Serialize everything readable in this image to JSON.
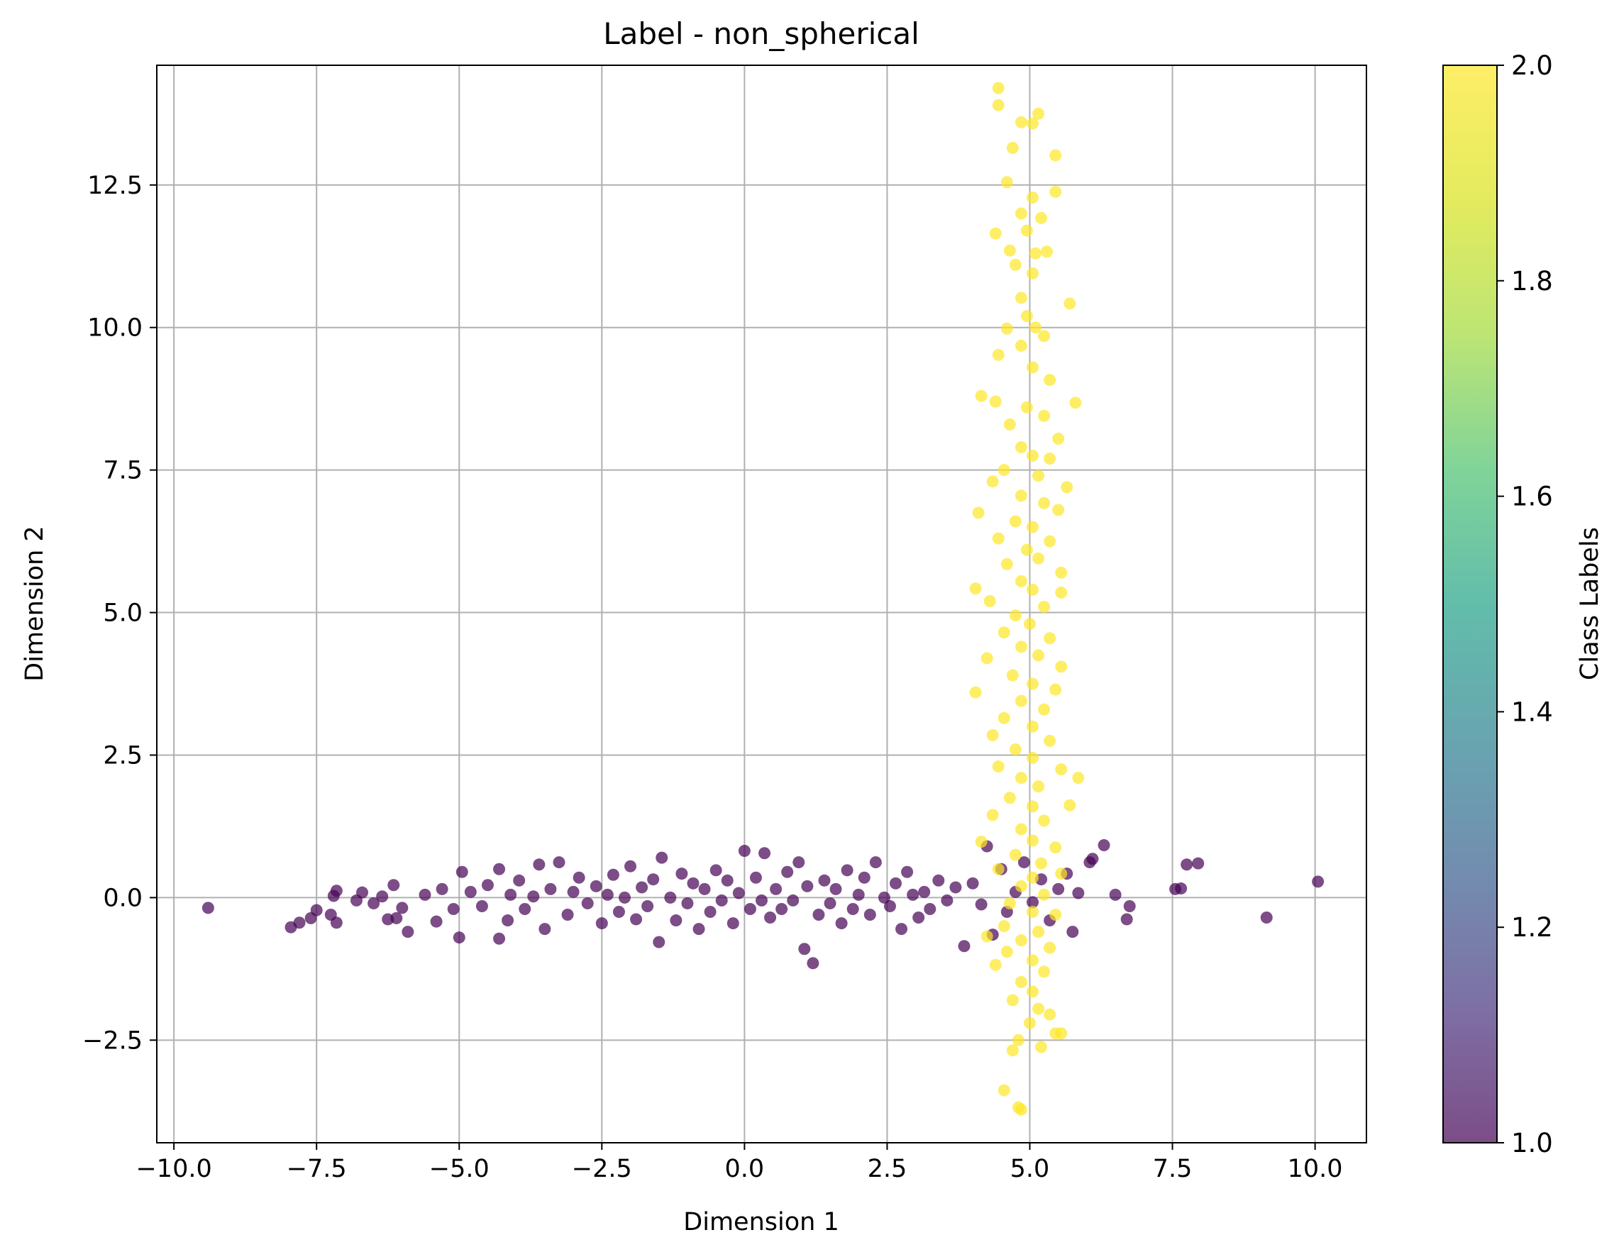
{
  "chart_data": {
    "type": "scatter",
    "title": "Label - non_spherical",
    "xlabel": "Dimension 1",
    "ylabel": "Dimension 2",
    "xlim": [
      -10.3,
      10.9
    ],
    "ylim": [
      -4.3,
      14.6
    ],
    "xticks": [
      -10.0,
      -7.5,
      -5.0,
      -2.5,
      0.0,
      2.5,
      5.0,
      7.5,
      10.0
    ],
    "xtick_labels": [
      "−10.0",
      "−7.5",
      "−5.0",
      "−2.5",
      "0.0",
      "2.5",
      "5.0",
      "7.5",
      "10.0"
    ],
    "yticks": [
      -2.5,
      0.0,
      2.5,
      5.0,
      7.5,
      10.0,
      12.5
    ],
    "ytick_labels": [
      "−2.5",
      "0.0",
      "2.5",
      "5.0",
      "7.5",
      "10.0",
      "12.5"
    ],
    "grid": true,
    "colormap": "viridis",
    "marker_alpha": 0.7,
    "colorbar": {
      "label": "Class Labels",
      "range": [
        1.0,
        2.0
      ],
      "ticks": [
        1.0,
        1.2,
        1.4,
        1.6,
        1.8,
        2.0
      ],
      "tick_labels": [
        "1.0",
        "1.2",
        "1.4",
        "1.6",
        "1.8",
        "2.0"
      ]
    },
    "series": [
      {
        "class_value": 1.0,
        "color": "#440154",
        "points": [
          [
            -9.4,
            -0.18
          ],
          [
            -7.95,
            -0.52
          ],
          [
            -7.8,
            -0.44
          ],
          [
            -7.6,
            -0.36
          ],
          [
            -7.5,
            -0.22
          ],
          [
            -7.25,
            -0.3
          ],
          [
            -7.15,
            -0.44
          ],
          [
            -7.15,
            0.12
          ],
          [
            -7.2,
            0.03
          ],
          [
            -6.8,
            -0.05
          ],
          [
            -6.7,
            0.09
          ],
          [
            -6.5,
            -0.1
          ],
          [
            -6.35,
            0.02
          ],
          [
            -6.25,
            -0.38
          ],
          [
            -6.1,
            -0.36
          ],
          [
            -6.15,
            0.22
          ],
          [
            -6.0,
            -0.18
          ],
          [
            -5.9,
            -0.6
          ],
          [
            -5.6,
            0.05
          ],
          [
            -5.4,
            -0.42
          ],
          [
            -5.3,
            0.15
          ],
          [
            -5.1,
            -0.2
          ],
          [
            -5.0,
            -0.7
          ],
          [
            -4.95,
            0.45
          ],
          [
            -4.8,
            0.1
          ],
          [
            -4.6,
            -0.15
          ],
          [
            -4.5,
            0.22
          ],
          [
            -4.3,
            -0.72
          ],
          [
            -4.3,
            0.5
          ],
          [
            -4.15,
            -0.4
          ],
          [
            -4.1,
            0.05
          ],
          [
            -3.95,
            0.3
          ],
          [
            -3.85,
            -0.2
          ],
          [
            -3.7,
            0.02
          ],
          [
            -3.6,
            0.58
          ],
          [
            -3.5,
            -0.55
          ],
          [
            -3.4,
            0.15
          ],
          [
            -3.25,
            0.62
          ],
          [
            -3.1,
            -0.3
          ],
          [
            -3.0,
            0.1
          ],
          [
            -2.9,
            0.35
          ],
          [
            -2.75,
            -0.1
          ],
          [
            -2.6,
            0.2
          ],
          [
            -2.5,
            -0.45
          ],
          [
            -2.4,
            0.05
          ],
          [
            -2.3,
            0.4
          ],
          [
            -2.2,
            -0.25
          ],
          [
            -2.1,
            0.0
          ],
          [
            -2.0,
            0.55
          ],
          [
            -1.9,
            -0.38
          ],
          [
            -1.8,
            0.18
          ],
          [
            -1.7,
            -0.15
          ],
          [
            -1.6,
            0.32
          ],
          [
            -1.5,
            -0.78
          ],
          [
            -1.45,
            0.7
          ],
          [
            -1.3,
            0.0
          ],
          [
            -1.2,
            -0.4
          ],
          [
            -1.1,
            0.42
          ],
          [
            -1.0,
            -0.1
          ],
          [
            -0.9,
            0.25
          ],
          [
            -0.8,
            -0.55
          ],
          [
            -0.7,
            0.15
          ],
          [
            -0.6,
            -0.25
          ],
          [
            -0.5,
            0.48
          ],
          [
            -0.4,
            -0.05
          ],
          [
            -0.3,
            0.3
          ],
          [
            -0.2,
            -0.45
          ],
          [
            -0.1,
            0.08
          ],
          [
            0.0,
            0.82
          ],
          [
            0.1,
            -0.2
          ],
          [
            0.2,
            0.35
          ],
          [
            0.3,
            -0.05
          ],
          [
            0.35,
            0.78
          ],
          [
            0.45,
            -0.35
          ],
          [
            0.55,
            0.15
          ],
          [
            0.65,
            -0.2
          ],
          [
            0.75,
            0.45
          ],
          [
            0.85,
            -0.05
          ],
          [
            0.95,
            0.62
          ],
          [
            1.05,
            -0.9
          ],
          [
            1.1,
            0.2
          ],
          [
            1.2,
            -1.15
          ],
          [
            1.3,
            -0.3
          ],
          [
            1.4,
            0.3
          ],
          [
            1.5,
            -0.1
          ],
          [
            1.6,
            0.15
          ],
          [
            1.7,
            -0.45
          ],
          [
            1.8,
            0.48
          ],
          [
            1.9,
            -0.2
          ],
          [
            2.0,
            0.05
          ],
          [
            2.1,
            0.35
          ],
          [
            2.2,
            -0.3
          ],
          [
            2.3,
            0.62
          ],
          [
            2.45,
            0.0
          ],
          [
            2.55,
            -0.15
          ],
          [
            2.65,
            0.25
          ],
          [
            2.75,
            -0.55
          ],
          [
            2.85,
            0.45
          ],
          [
            2.95,
            0.05
          ],
          [
            3.05,
            -0.35
          ],
          [
            3.15,
            0.1
          ],
          [
            3.25,
            -0.2
          ],
          [
            3.4,
            0.3
          ],
          [
            3.55,
            -0.05
          ],
          [
            3.7,
            0.18
          ],
          [
            3.85,
            -0.85
          ],
          [
            4.0,
            0.25
          ],
          [
            4.15,
            -0.12
          ],
          [
            4.25,
            0.9
          ],
          [
            4.35,
            -0.65
          ],
          [
            4.5,
            0.5
          ],
          [
            4.6,
            -0.25
          ],
          [
            4.75,
            0.1
          ],
          [
            4.9,
            0.62
          ],
          [
            5.05,
            -0.08
          ],
          [
            5.2,
            0.32
          ],
          [
            5.35,
            -0.4
          ],
          [
            5.5,
            0.15
          ],
          [
            5.65,
            0.42
          ],
          [
            5.75,
            -0.6
          ],
          [
            5.85,
            0.08
          ],
          [
            6.05,
            0.62
          ],
          [
            6.1,
            0.68
          ],
          [
            6.3,
            0.92
          ],
          [
            6.5,
            0.05
          ],
          [
            6.7,
            -0.38
          ],
          [
            6.75,
            -0.15
          ],
          [
            7.55,
            0.15
          ],
          [
            7.65,
            0.16
          ],
          [
            7.75,
            0.58
          ],
          [
            7.95,
            0.6
          ],
          [
            9.15,
            -0.35
          ],
          [
            10.05,
            0.28
          ]
        ]
      },
      {
        "class_value": 2.0,
        "color": "#fde725",
        "points": [
          [
            4.45,
            14.2
          ],
          [
            4.45,
            13.9
          ],
          [
            4.85,
            13.6
          ],
          [
            5.15,
            13.75
          ],
          [
            5.05,
            13.58
          ],
          [
            4.7,
            13.15
          ],
          [
            5.45,
            13.02
          ],
          [
            4.6,
            12.55
          ],
          [
            5.45,
            12.38
          ],
          [
            5.05,
            12.28
          ],
          [
            4.85,
            12.0
          ],
          [
            5.2,
            11.92
          ],
          [
            4.95,
            11.7
          ],
          [
            4.4,
            11.65
          ],
          [
            4.65,
            11.35
          ],
          [
            5.1,
            11.3
          ],
          [
            5.3,
            11.33
          ],
          [
            4.75,
            11.1
          ],
          [
            5.05,
            10.95
          ],
          [
            5.7,
            10.42
          ],
          [
            4.85,
            10.52
          ],
          [
            4.95,
            10.2
          ],
          [
            5.1,
            10.0
          ],
          [
            4.6,
            9.98
          ],
          [
            5.25,
            9.85
          ],
          [
            4.85,
            9.68
          ],
          [
            4.45,
            9.52
          ],
          [
            5.05,
            9.3
          ],
          [
            5.35,
            9.08
          ],
          [
            4.15,
            8.8
          ],
          [
            4.4,
            8.7
          ],
          [
            5.8,
            8.68
          ],
          [
            4.95,
            8.6
          ],
          [
            5.25,
            8.45
          ],
          [
            4.65,
            8.3
          ],
          [
            5.5,
            8.05
          ],
          [
            4.85,
            7.9
          ],
          [
            5.05,
            7.75
          ],
          [
            5.35,
            7.7
          ],
          [
            4.55,
            7.5
          ],
          [
            5.15,
            7.4
          ],
          [
            4.35,
            7.3
          ],
          [
            5.65,
            7.2
          ],
          [
            4.85,
            7.05
          ],
          [
            5.25,
            6.92
          ],
          [
            4.1,
            6.75
          ],
          [
            5.5,
            6.8
          ],
          [
            4.75,
            6.6
          ],
          [
            5.05,
            6.5
          ],
          [
            4.45,
            6.3
          ],
          [
            5.35,
            6.25
          ],
          [
            4.95,
            6.1
          ],
          [
            5.15,
            5.95
          ],
          [
            4.6,
            5.85
          ],
          [
            5.55,
            5.7
          ],
          [
            4.85,
            5.55
          ],
          [
            4.05,
            5.42
          ],
          [
            5.05,
            5.4
          ],
          [
            5.55,
            5.35
          ],
          [
            4.3,
            5.2
          ],
          [
            5.25,
            5.1
          ],
          [
            4.75,
            4.95
          ],
          [
            5.0,
            4.8
          ],
          [
            4.55,
            4.65
          ],
          [
            5.35,
            4.55
          ],
          [
            4.85,
            4.4
          ],
          [
            5.15,
            4.25
          ],
          [
            4.25,
            4.2
          ],
          [
            5.55,
            4.05
          ],
          [
            4.7,
            3.9
          ],
          [
            5.05,
            3.75
          ],
          [
            4.05,
            3.6
          ],
          [
            5.45,
            3.65
          ],
          [
            4.85,
            3.45
          ],
          [
            5.25,
            3.3
          ],
          [
            4.55,
            3.15
          ],
          [
            5.05,
            3.0
          ],
          [
            4.35,
            2.85
          ],
          [
            5.35,
            2.75
          ],
          [
            4.75,
            2.6
          ],
          [
            5.05,
            2.45
          ],
          [
            4.45,
            2.3
          ],
          [
            5.55,
            2.25
          ],
          [
            5.85,
            2.1
          ],
          [
            4.85,
            2.1
          ],
          [
            5.15,
            1.95
          ],
          [
            4.65,
            1.75
          ],
          [
            5.05,
            1.6
          ],
          [
            5.7,
            1.62
          ],
          [
            4.35,
            1.45
          ],
          [
            5.25,
            1.35
          ],
          [
            4.85,
            1.2
          ],
          [
            5.05,
            1.0
          ],
          [
            4.15,
            0.98
          ],
          [
            5.45,
            0.88
          ],
          [
            4.75,
            0.75
          ],
          [
            5.2,
            0.6
          ],
          [
            4.45,
            0.5
          ],
          [
            5.05,
            0.35
          ],
          [
            5.55,
            0.42
          ],
          [
            4.85,
            0.2
          ],
          [
            5.25,
            0.05
          ],
          [
            4.65,
            -0.1
          ],
          [
            5.05,
            -0.25
          ],
          [
            5.45,
            -0.3
          ],
          [
            4.55,
            -0.5
          ],
          [
            5.15,
            -0.6
          ],
          [
            4.85,
            -0.75
          ],
          [
            5.35,
            -0.88
          ],
          [
            4.25,
            -0.68
          ],
          [
            4.6,
            -0.95
          ],
          [
            5.05,
            -1.1
          ],
          [
            4.4,
            -1.18
          ],
          [
            5.25,
            -1.3
          ],
          [
            4.85,
            -1.48
          ],
          [
            5.05,
            -1.65
          ],
          [
            4.7,
            -1.8
          ],
          [
            5.15,
            -1.95
          ],
          [
            5.35,
            -2.05
          ],
          [
            5.0,
            -2.2
          ],
          [
            5.45,
            -2.38
          ],
          [
            5.55,
            -2.38
          ],
          [
            4.8,
            -2.5
          ],
          [
            4.7,
            -2.68
          ],
          [
            5.2,
            -2.62
          ],
          [
            4.55,
            -3.38
          ],
          [
            4.8,
            -3.68
          ],
          [
            4.85,
            -3.72
          ]
        ]
      }
    ]
  }
}
